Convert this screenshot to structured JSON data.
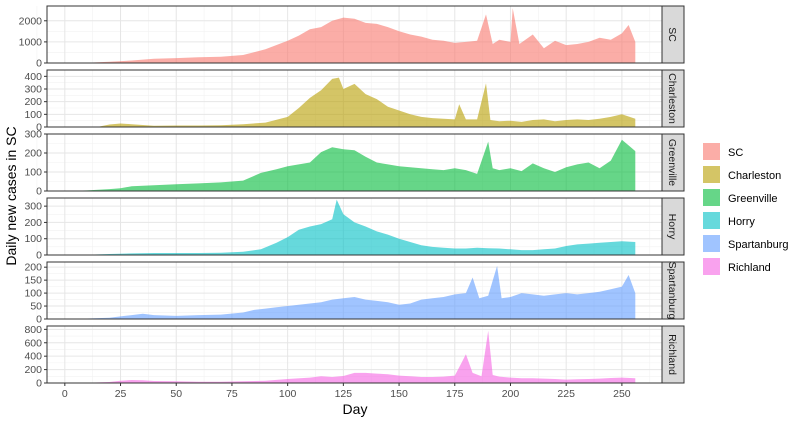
{
  "chart_data": {
    "type": "area",
    "xlabel": "Day",
    "ylabel": "Daily new cases in SC",
    "xlim": [
      -8,
      268
    ],
    "x_ticks": [
      0,
      25,
      50,
      75,
      100,
      125,
      150,
      175,
      200,
      225,
      250
    ],
    "grid": true,
    "facet_layout": "stacked panels, shared x-axis, strip labels on right",
    "legend_position": "right",
    "legend": [
      {
        "name": "SC",
        "color": "#F8766D"
      },
      {
        "name": "Charleston",
        "color": "#B79F00"
      },
      {
        "name": "Greenville",
        "color": "#00BA38"
      },
      {
        "name": "Horry",
        "color": "#00BFC4"
      },
      {
        "name": "Spartanburg",
        "color": "#619CFF"
      },
      {
        "name": "Richland",
        "color": "#F564E3"
      }
    ],
    "panels": [
      {
        "name": "SC",
        "color": "#F8766D",
        "ylim": [
          0,
          2700
        ],
        "y_ticks": [
          0,
          1000,
          2000
        ],
        "points": [
          [
            0,
            0
          ],
          [
            10,
            10
          ],
          [
            20,
            60
          ],
          [
            30,
            120
          ],
          [
            40,
            200
          ],
          [
            50,
            230
          ],
          [
            60,
            270
          ],
          [
            70,
            300
          ],
          [
            80,
            380
          ],
          [
            90,
            650
          ],
          [
            100,
            1050
          ],
          [
            105,
            1300
          ],
          [
            110,
            1600
          ],
          [
            115,
            1700
          ],
          [
            120,
            2000
          ],
          [
            125,
            2150
          ],
          [
            130,
            2100
          ],
          [
            135,
            1900
          ],
          [
            140,
            1850
          ],
          [
            145,
            1700
          ],
          [
            150,
            1500
          ],
          [
            155,
            1350
          ],
          [
            160,
            1250
          ],
          [
            165,
            1100
          ],
          [
            170,
            1050
          ],
          [
            175,
            950
          ],
          [
            180,
            1000
          ],
          [
            185,
            1050
          ],
          [
            189,
            2300
          ],
          [
            192,
            900
          ],
          [
            195,
            1100
          ],
          [
            200,
            1000
          ],
          [
            201,
            2600
          ],
          [
            204,
            900
          ],
          [
            210,
            1350
          ],
          [
            215,
            700
          ],
          [
            220,
            1050
          ],
          [
            225,
            850
          ],
          [
            230,
            900
          ],
          [
            235,
            1000
          ],
          [
            240,
            1200
          ],
          [
            245,
            1100
          ],
          [
            250,
            1400
          ],
          [
            253,
            1800
          ],
          [
            256,
            1000
          ]
        ]
      },
      {
        "name": "Charleston",
        "color": "#B79F00",
        "ylim": [
          0,
          450
        ],
        "y_ticks": [
          0,
          100,
          200,
          300,
          400
        ],
        "points": [
          [
            0,
            0
          ],
          [
            15,
            2
          ],
          [
            20,
            20
          ],
          [
            25,
            28
          ],
          [
            30,
            22
          ],
          [
            40,
            10
          ],
          [
            50,
            12
          ],
          [
            60,
            12
          ],
          [
            70,
            14
          ],
          [
            80,
            22
          ],
          [
            90,
            35
          ],
          [
            100,
            80
          ],
          [
            105,
            150
          ],
          [
            110,
            230
          ],
          [
            115,
            290
          ],
          [
            120,
            380
          ],
          [
            123,
            390
          ],
          [
            125,
            300
          ],
          [
            130,
            340
          ],
          [
            135,
            260
          ],
          [
            140,
            220
          ],
          [
            145,
            160
          ],
          [
            150,
            130
          ],
          [
            155,
            100
          ],
          [
            160,
            80
          ],
          [
            165,
            70
          ],
          [
            170,
            65
          ],
          [
            175,
            60
          ],
          [
            177,
            180
          ],
          [
            180,
            60
          ],
          [
            185,
            60
          ],
          [
            189,
            345
          ],
          [
            191,
            55
          ],
          [
            195,
            45
          ],
          [
            200,
            50
          ],
          [
            205,
            40
          ],
          [
            210,
            55
          ],
          [
            215,
            60
          ],
          [
            220,
            45
          ],
          [
            225,
            55
          ],
          [
            230,
            60
          ],
          [
            235,
            55
          ],
          [
            240,
            65
          ],
          [
            245,
            80
          ],
          [
            250,
            100
          ],
          [
            256,
            65
          ]
        ]
      },
      {
        "name": "Greenville",
        "color": "#00BA38",
        "ylim": [
          0,
          300
        ],
        "y_ticks": [
          0,
          100,
          200,
          300
        ],
        "points": [
          [
            0,
            0
          ],
          [
            10,
            3
          ],
          [
            20,
            10
          ],
          [
            25,
            15
          ],
          [
            30,
            25
          ],
          [
            40,
            30
          ],
          [
            50,
            35
          ],
          [
            60,
            40
          ],
          [
            70,
            45
          ],
          [
            80,
            55
          ],
          [
            88,
            95
          ],
          [
            95,
            115
          ],
          [
            100,
            130
          ],
          [
            110,
            150
          ],
          [
            115,
            205
          ],
          [
            120,
            230
          ],
          [
            125,
            220
          ],
          [
            130,
            215
          ],
          [
            135,
            180
          ],
          [
            140,
            150
          ],
          [
            145,
            140
          ],
          [
            150,
            130
          ],
          [
            155,
            125
          ],
          [
            160,
            120
          ],
          [
            165,
            115
          ],
          [
            170,
            110
          ],
          [
            175,
            120
          ],
          [
            180,
            110
          ],
          [
            185,
            90
          ],
          [
            190,
            260
          ],
          [
            192,
            120
          ],
          [
            195,
            110
          ],
          [
            200,
            120
          ],
          [
            205,
            105
          ],
          [
            210,
            145
          ],
          [
            215,
            120
          ],
          [
            220,
            100
          ],
          [
            225,
            125
          ],
          [
            230,
            140
          ],
          [
            235,
            150
          ],
          [
            240,
            120
          ],
          [
            245,
            160
          ],
          [
            250,
            270
          ],
          [
            253,
            240
          ],
          [
            256,
            210
          ]
        ]
      },
      {
        "name": "Horry",
        "color": "#00BFC4",
        "ylim": [
          0,
          350
        ],
        "y_ticks": [
          0,
          100,
          200,
          300
        ],
        "points": [
          [
            0,
            0
          ],
          [
            10,
            2
          ],
          [
            20,
            6
          ],
          [
            30,
            10
          ],
          [
            40,
            12
          ],
          [
            50,
            12
          ],
          [
            60,
            12
          ],
          [
            70,
            14
          ],
          [
            80,
            20
          ],
          [
            88,
            35
          ],
          [
            95,
            75
          ],
          [
            100,
            110
          ],
          [
            105,
            155
          ],
          [
            110,
            175
          ],
          [
            115,
            190
          ],
          [
            120,
            220
          ],
          [
            122,
            340
          ],
          [
            125,
            250
          ],
          [
            130,
            200
          ],
          [
            135,
            175
          ],
          [
            140,
            145
          ],
          [
            145,
            125
          ],
          [
            150,
            100
          ],
          [
            155,
            80
          ],
          [
            160,
            60
          ],
          [
            165,
            50
          ],
          [
            170,
            45
          ],
          [
            175,
            40
          ],
          [
            180,
            40
          ],
          [
            185,
            45
          ],
          [
            190,
            42
          ],
          [
            195,
            40
          ],
          [
            200,
            35
          ],
          [
            205,
            30
          ],
          [
            210,
            30
          ],
          [
            215,
            35
          ],
          [
            220,
            40
          ],
          [
            225,
            55
          ],
          [
            230,
            65
          ],
          [
            235,
            70
          ],
          [
            240,
            75
          ],
          [
            245,
            80
          ],
          [
            250,
            85
          ],
          [
            256,
            80
          ]
        ]
      },
      {
        "name": "Spartanburg",
        "color": "#619CFF",
        "ylim": [
          0,
          220
        ],
        "y_ticks": [
          0,
          50,
          100,
          150,
          200
        ],
        "points": [
          [
            0,
            0
          ],
          [
            10,
            2
          ],
          [
            20,
            5
          ],
          [
            25,
            10
          ],
          [
            30,
            15
          ],
          [
            35,
            20
          ],
          [
            40,
            15
          ],
          [
            50,
            12
          ],
          [
            60,
            15
          ],
          [
            70,
            17
          ],
          [
            80,
            25
          ],
          [
            85,
            35
          ],
          [
            90,
            40
          ],
          [
            95,
            45
          ],
          [
            100,
            50
          ],
          [
            105,
            55
          ],
          [
            110,
            60
          ],
          [
            115,
            65
          ],
          [
            120,
            75
          ],
          [
            125,
            80
          ],
          [
            130,
            85
          ],
          [
            135,
            75
          ],
          [
            140,
            70
          ],
          [
            145,
            65
          ],
          [
            150,
            55
          ],
          [
            155,
            60
          ],
          [
            160,
            75
          ],
          [
            165,
            80
          ],
          [
            170,
            85
          ],
          [
            175,
            95
          ],
          [
            180,
            100
          ],
          [
            183,
            160
          ],
          [
            186,
            80
          ],
          [
            190,
            90
          ],
          [
            194,
            205
          ],
          [
            196,
            80
          ],
          [
            200,
            85
          ],
          [
            205,
            100
          ],
          [
            210,
            95
          ],
          [
            215,
            90
          ],
          [
            220,
            95
          ],
          [
            225,
            100
          ],
          [
            230,
            95
          ],
          [
            235,
            100
          ],
          [
            240,
            105
          ],
          [
            245,
            115
          ],
          [
            250,
            125
          ],
          [
            253,
            170
          ],
          [
            256,
            100
          ]
        ]
      },
      {
        "name": "Richland",
        "color": "#F564E3",
        "ylim": [
          0,
          850
        ],
        "y_ticks": [
          0,
          200,
          400,
          600,
          800
        ],
        "points": [
          [
            0,
            0
          ],
          [
            10,
            5
          ],
          [
            20,
            15
          ],
          [
            25,
            35
          ],
          [
            30,
            45
          ],
          [
            35,
            40
          ],
          [
            40,
            30
          ],
          [
            50,
            25
          ],
          [
            60,
            20
          ],
          [
            70,
            18
          ],
          [
            80,
            25
          ],
          [
            90,
            35
          ],
          [
            100,
            60
          ],
          [
            110,
            80
          ],
          [
            115,
            100
          ],
          [
            120,
            90
          ],
          [
            125,
            105
          ],
          [
            130,
            150
          ],
          [
            135,
            150
          ],
          [
            140,
            140
          ],
          [
            145,
            130
          ],
          [
            150,
            110
          ],
          [
            155,
            100
          ],
          [
            160,
            90
          ],
          [
            165,
            90
          ],
          [
            170,
            95
          ],
          [
            175,
            110
          ],
          [
            178,
            300
          ],
          [
            180,
            430
          ],
          [
            183,
            150
          ],
          [
            187,
            100
          ],
          [
            190,
            780
          ],
          [
            192,
            120
          ],
          [
            195,
            95
          ],
          [
            200,
            80
          ],
          [
            205,
            70
          ],
          [
            210,
            70
          ],
          [
            215,
            65
          ],
          [
            220,
            60
          ],
          [
            225,
            50
          ],
          [
            230,
            55
          ],
          [
            235,
            60
          ],
          [
            240,
            65
          ],
          [
            245,
            75
          ],
          [
            250,
            80
          ],
          [
            256,
            70
          ]
        ]
      }
    ]
  }
}
